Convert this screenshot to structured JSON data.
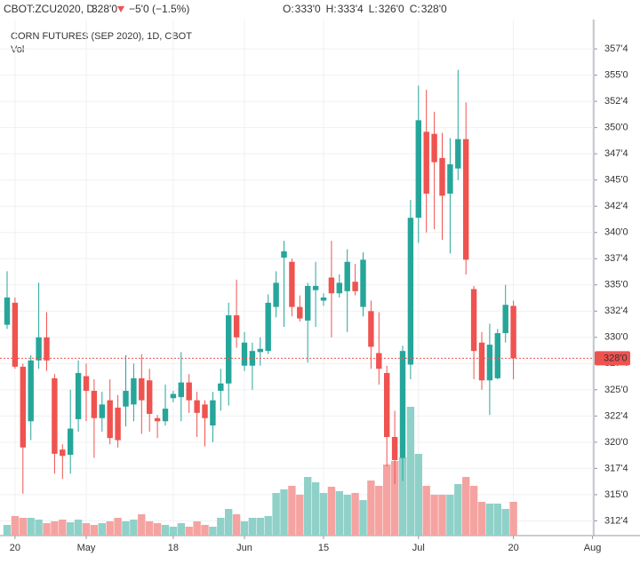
{
  "chart_data": {
    "type": "candlestick",
    "symbol": "CBOT:ZCU2020, D",
    "last": "328'0",
    "change": "−5'0 (−1.5%)",
    "ohlc_labels": [
      {
        "label": "O:",
        "value": "333'0"
      },
      {
        "label": "H:",
        "value": "333'4"
      },
      {
        "label": "L:",
        "value": "326'0"
      },
      {
        "label": "C:",
        "value": "328'0"
      }
    ],
    "title": "CORN FUTURES (SEP 2020), 1D, CBOT",
    "subtitle": "Vol",
    "categories": [
      null,
      "20",
      null,
      null,
      null,
      null,
      null,
      null,
      null,
      null,
      "May",
      null,
      null,
      null,
      null,
      null,
      null,
      null,
      null,
      null,
      null,
      "18",
      null,
      null,
      null,
      null,
      null,
      null,
      null,
      null,
      "Jun",
      null,
      null,
      null,
      null,
      null,
      null,
      null,
      null,
      null,
      "15",
      null,
      null,
      null,
      null,
      null,
      null,
      null,
      null,
      null,
      null,
      null,
      "Jul",
      null,
      null,
      null,
      null,
      null,
      null,
      null,
      null,
      null,
      null,
      null,
      "20",
      null,
      null,
      null,
      null,
      null,
      null,
      null,
      null,
      null,
      "Aug"
    ],
    "open": [
      331.2,
      333.3,
      327.2,
      322.0,
      327.8,
      330.0,
      326.1,
      319.3,
      318.8,
      322.2,
      326.3,
      324.9,
      322.3,
      324.0,
      323.3,
      323.4,
      323.6,
      326.1,
      325.9,
      322.3,
      322.0,
      324.2,
      324.3,
      325.7,
      324.0,
      323.6,
      321.6,
      324.9,
      325.6,
      332.1,
      327.3,
      327.3,
      328.6,
      328.7,
      332.9,
      337.6,
      337.2,
      332.9,
      331.6,
      334.5,
      333.5,
      335.7,
      334.2,
      334.4,
      335.3,
      332.9,
      332.5,
      328.5,
      326.6,
      320.5,
      318.5,
      327.4,
      341.4,
      349.6,
      349.4,
      347.1,
      343.7,
      346.1,
      348.9,
      334.6,
      329.5,
      325.9,
      326.1,
      330.4,
      333.0,
      null,
      null,
      null,
      null,
      null,
      null,
      null,
      null,
      null,
      null
    ],
    "high": [
      336.3,
      333.8,
      327.5,
      328.3,
      335.2,
      332.4,
      326.5,
      319.8,
      325.0,
      327.8,
      327.5,
      326.0,
      324.8,
      326.0,
      324.5,
      328.3,
      327.5,
      328.4,
      327.0,
      322.6,
      325.5,
      324.9,
      328.6,
      326.5,
      324.8,
      324.0,
      324.8,
      327.0,
      333.3,
      335.5,
      330.5,
      329.5,
      330.0,
      334.1,
      336.3,
      339.2,
      337.5,
      334.0,
      335.2,
      337.2,
      334.2,
      339.2,
      336.0,
      338.4,
      337.0,
      338.1,
      333.5,
      332.4,
      327.3,
      323.0,
      329.2,
      343.1,
      354.0,
      353.6,
      351.5,
      349.5,
      349.0,
      355.5,
      352.4,
      334.9,
      330.5,
      331.3,
      330.8,
      335.0,
      333.5,
      null,
      null,
      null,
      null,
      null,
      null,
      null,
      null,
      null,
      null
    ],
    "low": [
      330.8,
      327.0,
      315.1,
      320.2,
      327.0,
      326.8,
      317.0,
      316.5,
      317.0,
      321.0,
      322.0,
      318.5,
      321.0,
      319.8,
      319.5,
      321.5,
      322.0,
      320.8,
      321.0,
      320.4,
      321.6,
      323.8,
      322.0,
      322.8,
      320.5,
      319.6,
      320.0,
      323.0,
      323.5,
      329.0,
      326.8,
      325.0,
      327.3,
      328.4,
      331.9,
      331.0,
      332.0,
      331.5,
      327.6,
      331.0,
      333.0,
      330.0,
      333.8,
      330.5,
      334.0,
      332.0,
      327.0,
      325.5,
      317.7,
      316.0,
      316.3,
      326.0,
      339.0,
      340.0,
      340.3,
      339.3,
      338.0,
      345.0,
      336.0,
      326.0,
      325.0,
      322.6,
      326.0,
      329.5,
      326.0,
      null,
      null,
      null,
      null,
      null,
      null,
      null,
      null,
      null,
      null
    ],
    "close": [
      333.8,
      327.2,
      319.5,
      327.8,
      330.0,
      327.8,
      318.9,
      318.7,
      321.3,
      326.6,
      324.9,
      322.3,
      323.6,
      320.4,
      320.2,
      324.9,
      326.1,
      324.0,
      322.7,
      322.0,
      323.2,
      324.6,
      325.7,
      324.0,
      322.8,
      322.3,
      324.0,
      325.6,
      332.1,
      330.0,
      329.5,
      328.7,
      328.9,
      333.3,
      335.2,
      338.2,
      332.9,
      331.8,
      334.9,
      334.9,
      333.8,
      334.2,
      335.2,
      337.2,
      334.4,
      337.4,
      329.1,
      327.0,
      320.5,
      318.3,
      328.7,
      341.4,
      350.7,
      343.7,
      346.7,
      343.5,
      346.5,
      348.9,
      337.4,
      328.7,
      325.9,
      329.3,
      330.4,
      333.1,
      328.0,
      null,
      null,
      null,
      null,
      null,
      null,
      null,
      null,
      null,
      null
    ],
    "volume": [
      12,
      22,
      20,
      20,
      18,
      14,
      16,
      18,
      15,
      18,
      14,
      12,
      14,
      16,
      20,
      16,
      18,
      24,
      16,
      14,
      12,
      10,
      14,
      10,
      16,
      12,
      10,
      20,
      30,
      24,
      16,
      20,
      20,
      22,
      48,
      52,
      56,
      46,
      66,
      60,
      48,
      55,
      50,
      46,
      48,
      40,
      62,
      56,
      80,
      84,
      88,
      145,
      92,
      56,
      46,
      46,
      46,
      58,
      66,
      56,
      38,
      36,
      36,
      30,
      38,
      null,
      null,
      null,
      null,
      null,
      null,
      null,
      null,
      null,
      null
    ],
    "up_color": "#26a69a",
    "down_color": "#ef5350",
    "volume_up_color": "#8fd1c8",
    "volume_down_color": "#f5a3a1",
    "ylim": [
      311.1,
      360.3
    ],
    "yticks": [
      {
        "value": 312.5,
        "label": "312'4"
      },
      {
        "value": 315,
        "label": "315'0"
      },
      {
        "value": 317.5,
        "label": "317'4"
      },
      {
        "value": 320,
        "label": "320'0"
      },
      {
        "value": 322.5,
        "label": "322'4"
      },
      {
        "value": 325,
        "label": "325'0"
      },
      {
        "value": 327.5,
        "label": "327'4"
      },
      {
        "value": 330,
        "label": "330'0"
      },
      {
        "value": 332.5,
        "label": "332'4"
      },
      {
        "value": 335,
        "label": "335'0"
      },
      {
        "value": 337.5,
        "label": "337'4"
      },
      {
        "value": 340,
        "label": "340'0"
      },
      {
        "value": 342.5,
        "label": "342'4"
      },
      {
        "value": 345,
        "label": "345'0"
      },
      {
        "value": 347.5,
        "label": "347'4"
      },
      {
        "value": 350,
        "label": "350'0"
      },
      {
        "value": 352.5,
        "label": "352'4"
      },
      {
        "value": 355,
        "label": "355'0"
      },
      {
        "value": 357.5,
        "label": "357'4"
      }
    ],
    "last_price": {
      "value": 328,
      "label": "328'0"
    },
    "grid": true
  }
}
